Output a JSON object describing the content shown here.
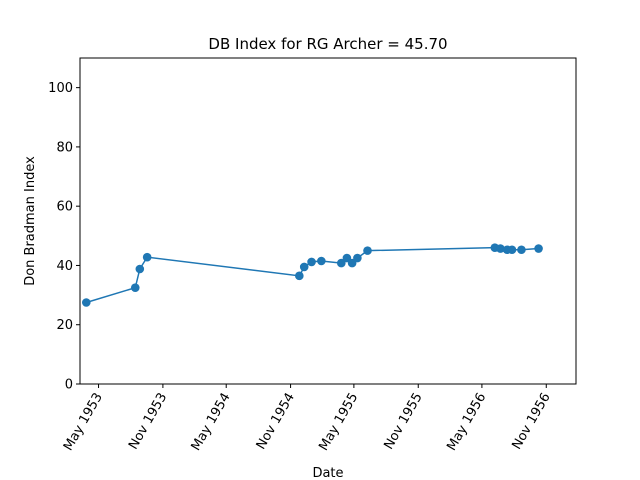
{
  "chart_data": {
    "type": "line",
    "title": "DB Index for RG Archer = 45.70",
    "xlabel": "Date",
    "ylabel": "Don Bradman Index",
    "ylim": [
      0,
      110
    ],
    "xlim": [
      "1953-03-09",
      "1957-01-25"
    ],
    "grid": false,
    "color": "#1f77b4",
    "x_ticks": [
      {
        "date": "1953-05-01",
        "label": "May 1953"
      },
      {
        "date": "1953-11-01",
        "label": "Nov 1953"
      },
      {
        "date": "1954-05-01",
        "label": "May 1954"
      },
      {
        "date": "1954-11-01",
        "label": "Nov 1954"
      },
      {
        "date": "1955-05-01",
        "label": "May 1955"
      },
      {
        "date": "1955-11-01",
        "label": "Nov 1955"
      },
      {
        "date": "1956-05-01",
        "label": "May 1956"
      },
      {
        "date": "1956-11-01",
        "label": "Nov 1956"
      }
    ],
    "y_ticks": [
      0,
      20,
      40,
      60,
      80,
      100
    ],
    "series": [
      {
        "x": [
          "1953-03-27",
          "1953-08-14",
          "1953-08-27",
          "1953-09-17",
          "1954-11-26",
          "1954-12-10",
          "1954-12-31",
          "1955-01-28",
          "1955-03-26",
          "1955-04-11",
          "1955-04-26",
          "1955-05-11",
          "1955-06-09",
          "1956-06-07",
          "1956-06-23",
          "1956-07-12",
          "1956-07-26",
          "1956-08-22",
          "1956-10-10"
        ],
        "y": [
          27.5,
          32.5,
          38.8,
          42.8,
          36.5,
          39.5,
          41.2,
          41.5,
          40.8,
          42.5,
          40.8,
          42.5,
          45.0,
          46.0,
          45.7,
          45.3,
          45.3,
          45.3,
          45.7
        ]
      }
    ]
  }
}
